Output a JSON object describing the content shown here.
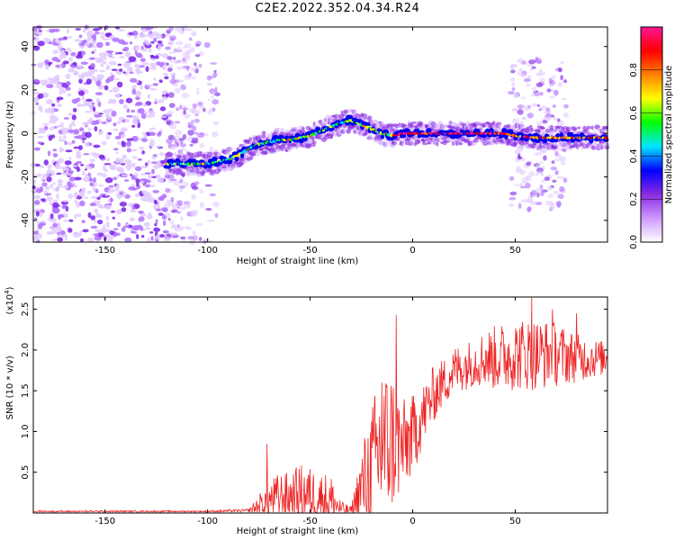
{
  "title": "C2E2.2022.352.04.34.R24",
  "chart_data": [
    {
      "type": "heatmap",
      "xlabel": "Height of straight line (km)",
      "ylabel": "Frequency (Hz)",
      "xlim": [
        -185,
        95
      ],
      "ylim": [
        -50,
        49
      ],
      "xticks": [
        -150,
        -100,
        -50,
        0,
        50
      ],
      "yticks": [
        -40,
        -20,
        0,
        20,
        40
      ],
      "colorbar": {
        "label": "Normalized spectral amplitude",
        "range": [
          0,
          1
        ],
        "ticks": [
          0.0,
          0.2,
          0.4,
          0.6,
          0.8
        ],
        "colors": [
          "#ffffff",
          "#cc99ff",
          "#8a2be2",
          "#0000ff",
          "#00e5ff",
          "#00ff00",
          "#ffff00",
          "#ff8000",
          "#ff0000",
          "#ff1493"
        ]
      },
      "ridge": {
        "x": [
          -120,
          -110,
          -100,
          -95,
          -90,
          -85,
          -80,
          -75,
          -70,
          -65,
          -60,
          -55,
          -50,
          -45,
          -40,
          -35,
          -30,
          -25,
          -20,
          -15,
          -10,
          -5,
          0,
          10,
          20,
          30,
          40,
          45,
          50,
          60,
          70,
          80,
          90,
          95
        ],
        "y": [
          -14,
          -14,
          -14,
          -13,
          -12,
          -10,
          -7,
          -5,
          -4,
          -3,
          -3,
          -2,
          -1,
          1,
          3,
          5,
          6,
          4,
          2,
          0,
          -1,
          0,
          0,
          0,
          0,
          0,
          0,
          0,
          -1,
          -2,
          -2,
          -2,
          -2,
          -2
        ]
      },
      "noise_regions": [
        {
          "x": [
            -185,
            -120
          ],
          "y": [
            -50,
            49
          ],
          "density": "high"
        },
        {
          "x": [
            -120,
            -105
          ],
          "y": [
            -50,
            49
          ],
          "density": "medium"
        },
        {
          "x": [
            -105,
            -95
          ],
          "y": [
            -50,
            49
          ],
          "density": "low"
        },
        {
          "x": [
            48,
            75
          ],
          "y": [
            -35,
            35
          ],
          "density": "medium"
        }
      ]
    },
    {
      "type": "line",
      "xlabel": "Height of straight line (km)",
      "ylabel": "SNR (10 * v/v)",
      "exponent_label": "(x10",
      "exponent_power": "4",
      "xlim": [
        -185,
        95
      ],
      "ylim": [
        0,
        2.65
      ],
      "xticks": [
        -150,
        -100,
        -50,
        0,
        50
      ],
      "yticks": [
        0.5,
        1.0,
        1.5,
        2.0,
        2.5
      ],
      "ytick_labels": [
        "0.5",
        "1.0",
        "1.5",
        "2.0",
        "2.5"
      ],
      "color": "#ee2222",
      "envelope": {
        "x": [
          -185,
          -100,
          -80,
          -75,
          -70,
          -65,
          -60,
          -55,
          -50,
          -45,
          -40,
          -35,
          -30,
          -25,
          -20,
          -15,
          -10,
          -5,
          0,
          5,
          10,
          15,
          20,
          25,
          30,
          35,
          40,
          50,
          60,
          70,
          80,
          95
        ],
        "base": [
          0.02,
          0.02,
          0.03,
          0.08,
          0.15,
          0.2,
          0.2,
          0.25,
          0.22,
          0.2,
          0.15,
          0.05,
          0.03,
          0.3,
          0.55,
          0.8,
          0.9,
          0.8,
          0.95,
          1.2,
          1.45,
          1.6,
          1.75,
          1.8,
          1.85,
          1.9,
          1.9,
          1.95,
          1.95,
          1.95,
          1.9,
          1.9
        ],
        "amp": [
          0.01,
          0.01,
          0.02,
          0.15,
          0.25,
          0.3,
          0.3,
          0.35,
          0.35,
          0.3,
          0.35,
          0.1,
          0.05,
          0.5,
          0.8,
          1.0,
          0.9,
          0.6,
          0.5,
          0.4,
          0.35,
          0.3,
          0.3,
          0.3,
          0.3,
          0.35,
          0.4,
          0.45,
          0.45,
          0.4,
          0.3,
          0.2
        ]
      },
      "spikes": [
        {
          "x": -71,
          "y": 0.85
        },
        {
          "x": -15,
          "y": 1.6
        },
        {
          "x": -8,
          "y": 2.43
        },
        {
          "x": 58,
          "y": 2.65
        },
        {
          "x": 68,
          "y": 2.5
        },
        {
          "x": 80,
          "y": 2.45
        }
      ]
    }
  ]
}
